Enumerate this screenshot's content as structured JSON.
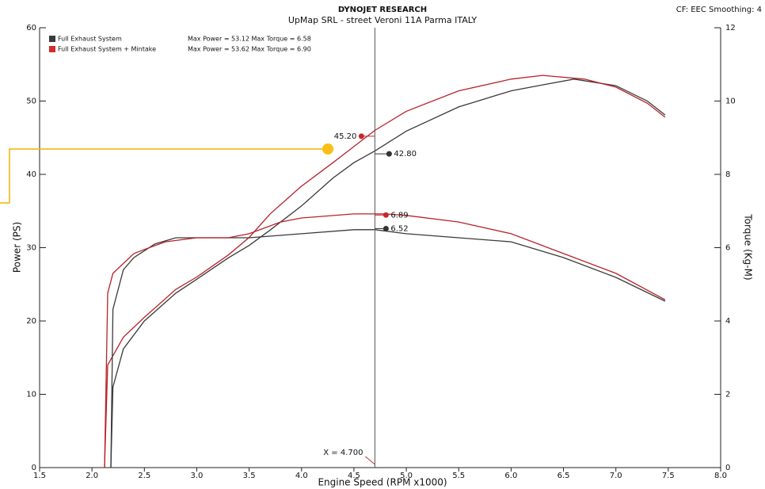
{
  "chart_data": {
    "type": "line",
    "title": "DYNOJET RESEARCH",
    "subtitle": "UpMap SRL - street Veroni 11A Parma ITALY",
    "corner_note": "CF: EEC  Smoothing: 4",
    "x_label": "Engine Speed (RPM x1000)",
    "y_label": "Power (PS)",
    "y2_label": "Torque (Kg-M)",
    "xlim": [
      1.5,
      8.0
    ],
    "ylim": [
      0,
      60
    ],
    "y2lim": [
      0,
      12
    ],
    "xticks": [
      1.5,
      {
        "value": 2,
        "label": "2.0"
      },
      2.5,
      {
        "value": 3,
        "label": "3.0"
      },
      3.5,
      {
        "value": 4,
        "label": "4.0"
      },
      4.5,
      {
        "value": 5,
        "label": "5.0"
      },
      5.5,
      {
        "value": 6,
        "label": "6.0"
      },
      6.5,
      {
        "value": 7,
        "label": "7.0"
      },
      7.5,
      {
        "value": 8,
        "label": "8.0"
      }
    ],
    "yticks": [
      0,
      10,
      20,
      30,
      40,
      50,
      60
    ],
    "y2ticks": [
      0,
      2,
      4,
      6,
      8,
      10,
      12
    ],
    "series": [
      {
        "name": "Full Exhaust System",
        "color": "#3a3a3a",
        "axis": "y",
        "x": [
          2.18,
          2.2,
          2.3,
          2.5,
          2.8,
          3.0,
          3.3,
          3.5,
          3.7,
          4.0,
          4.3,
          4.5,
          4.7,
          5.0,
          5.5,
          6.0,
          6.3,
          6.6,
          7.0,
          7.3,
          7.47
        ],
        "values": [
          0,
          11,
          16.2,
          20,
          23.8,
          25.7,
          28.6,
          30.3,
          32.4,
          35.7,
          39.5,
          41.6,
          43.2,
          45.9,
          49.2,
          51.4,
          52.2,
          53,
          52.1,
          50,
          48.1
        ]
      },
      {
        "name": "Full Exhaust System + Mintake",
        "color": "#b8232a",
        "axis": "y",
        "x": [
          2.12,
          2.15,
          2.3,
          2.5,
          2.8,
          3.0,
          3.3,
          3.5,
          3.7,
          4.0,
          4.3,
          4.5,
          4.7,
          5.0,
          5.5,
          6.0,
          6.3,
          6.7,
          7.0,
          7.3,
          7.47
        ],
        "values": [
          0,
          14,
          17.8,
          20.5,
          24.3,
          26,
          29,
          31.4,
          34.6,
          38.4,
          41.6,
          43.8,
          46,
          48.6,
          51.4,
          53,
          53.5,
          53,
          51.9,
          49.7,
          47.8
        ]
      },
      {
        "name": "Full Exhaust System",
        "color": "#3a3a3a",
        "axis": "y2",
        "x": [
          2.18,
          2.2,
          2.3,
          2.4,
          2.6,
          2.8,
          3.0,
          3.3,
          3.5,
          4.0,
          4.5,
          4.7,
          5.0,
          5.5,
          6.0,
          6.5,
          7.0,
          7.47
        ],
        "values": [
          0,
          4.32,
          5.4,
          5.73,
          6.1,
          6.27,
          6.27,
          6.27,
          6.27,
          6.38,
          6.49,
          6.49,
          6.38,
          6.27,
          6.16,
          5.73,
          5.19,
          4.54
        ]
      },
      {
        "name": "Full Exhaust System + Mintake",
        "color": "#b8232a",
        "axis": "y2",
        "x": [
          2.12,
          2.15,
          2.2,
          2.4,
          2.5,
          2.7,
          3.0,
          3.3,
          3.5,
          3.8,
          4.0,
          4.5,
          4.8,
          5.0,
          5.5,
          6.0,
          6.5,
          7.0,
          7.47
        ],
        "values": [
          0,
          4.76,
          5.3,
          5.84,
          5.95,
          6.16,
          6.27,
          6.27,
          6.38,
          6.7,
          6.81,
          6.92,
          6.92,
          6.88,
          6.7,
          6.38,
          5.84,
          5.3,
          4.58
        ]
      }
    ],
    "legend": [
      {
        "name": "Full Exhaust System",
        "note": "Max Power = 53.12   Max Torque = 6.58",
        "color": "#3a3a3a"
      },
      {
        "name": "Full Exhaust System + Mintake",
        "note": "Max Power = 53.62   Max Torque = 6.90",
        "color": "#d42a2a"
      }
    ],
    "cursor": {
      "x": 4.7,
      "label": "X = 4.700"
    },
    "readouts": [
      {
        "value": 45.2,
        "label": "45.20",
        "axis": "y",
        "color": "#c62828",
        "side": "left"
      },
      {
        "value": 42.8,
        "label": "42.80",
        "axis": "y",
        "color": "#333333",
        "side": "right"
      },
      {
        "value": 6.89,
        "label": "6.89",
        "axis": "y2",
        "color": "#c62828",
        "side": "right"
      },
      {
        "value": 6.52,
        "label": "6.52",
        "axis": "y2",
        "color": "#333333",
        "side": "right"
      }
    ]
  }
}
